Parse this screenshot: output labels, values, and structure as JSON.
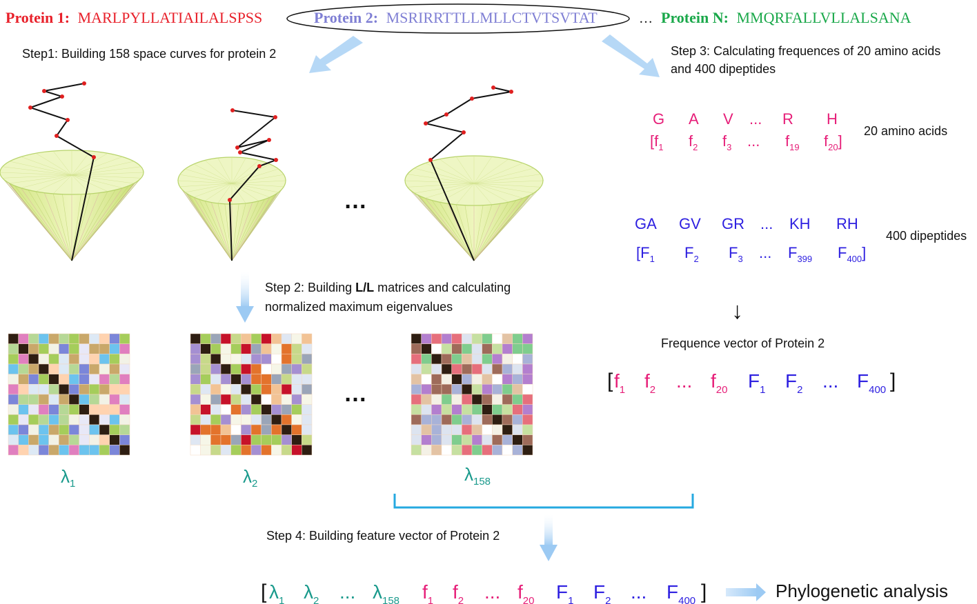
{
  "colors": {
    "protein1": "#e8202a",
    "protein2": "#7f7fd4",
    "proteinN": "#1aa84a",
    "aa": "#e61e78",
    "dipep": "#2d1fe0",
    "lambda": "#1a9a8c",
    "bracket": "#26a9e0",
    "arrow": "#a9d1f5",
    "cone_fill": "#e6f2a4",
    "cone_rim": "#b7d36a",
    "curve": "#111111",
    "point": "#e02020"
  },
  "proteins": [
    {
      "label": "Protein 1:",
      "seq": "MARLPYLLATIAILALSPSS"
    },
    {
      "label": "Protein 2:",
      "seq": "MSRIRRTTLLMLLCTVTSVTAT"
    },
    {
      "label": "Protein N:",
      "seq": "MMQRFALLVLLALSANA"
    }
  ],
  "ellipsis": "…",
  "steps": {
    "step1": "Step1: Building 158 space curves for protein 2",
    "step2_a": "Step 2: Building ",
    "step2_bold": "L/L",
    "step2_b": " matrices and calculating",
    "step2_c": "normalized maximum eigenvalues",
    "step3_a": "Step 3: Calculating frequences of 20 amino acids",
    "step3_b": "and 400 dipeptides",
    "step4": "Step 4: Building feature vector of Protein 2"
  },
  "amino": {
    "letters": [
      "G",
      "A",
      "V",
      "...",
      "R",
      "H"
    ],
    "freq": [
      {
        "b": "[f",
        "s": "1"
      },
      {
        "b": "f",
        "s": "2"
      },
      {
        "b": "f",
        "s": "3"
      },
      {
        "b": "...",
        "s": ""
      },
      {
        "b": "f",
        "s": "19"
      },
      {
        "b": "f",
        "s": "20",
        "close": "]"
      }
    ],
    "caption": "20 amino acids"
  },
  "dipeptide": {
    "letters": [
      "GA",
      "GV",
      "GR",
      "...",
      "KH",
      "RH"
    ],
    "freq": [
      {
        "b": "[F",
        "s": "1"
      },
      {
        "b": "F",
        "s": "2"
      },
      {
        "b": "F",
        "s": "3"
      },
      {
        "b": "...",
        "s": ""
      },
      {
        "b": "F",
        "s": "399"
      },
      {
        "b": "F",
        "s": "400",
        "close": "]"
      }
    ],
    "caption": "400 dipeptides"
  },
  "down_arrow": "↓",
  "freq_vector": {
    "title": "Frequence vector of Protein 2",
    "open": "[",
    "close": "]",
    "items": [
      {
        "b": "f",
        "s": "1",
        "kind": "aa"
      },
      {
        "b": "f",
        "s": "2",
        "kind": "aa"
      },
      {
        "b": "...",
        "s": "",
        "kind": "aa"
      },
      {
        "b": "f",
        "s": "20",
        "kind": "aa"
      },
      {
        "b": "F",
        "s": "1",
        "kind": "dipep"
      },
      {
        "b": "F",
        "s": "2",
        "kind": "dipep"
      },
      {
        "b": "...",
        "s": "",
        "kind": "dipep"
      },
      {
        "b": "F",
        "s": "400",
        "kind": "dipep"
      }
    ]
  },
  "lambdas": [
    {
      "b": "λ",
      "s": "1"
    },
    {
      "b": "λ",
      "s": "2"
    },
    {
      "b": "λ",
      "s": "158"
    }
  ],
  "mid_dots": "…",
  "feature_vector": {
    "open": "[",
    "close": "]",
    "items": [
      {
        "b": "λ",
        "s": "1",
        "kind": "lambda"
      },
      {
        "b": "λ",
        "s": "2",
        "kind": "lambda"
      },
      {
        "b": "...",
        "s": "",
        "kind": "lambda"
      },
      {
        "b": "λ",
        "s": "158",
        "kind": "lambda"
      },
      {
        "b": "f",
        "s": "1",
        "kind": "aa"
      },
      {
        "b": "f",
        "s": "2",
        "kind": "aa"
      },
      {
        "b": "...",
        "s": "",
        "kind": "aa"
      },
      {
        "b": "f",
        "s": "20",
        "kind": "aa"
      },
      {
        "b": "F",
        "s": "1",
        "kind": "dipep"
      },
      {
        "b": "F",
        "s": "2",
        "kind": "dipep"
      },
      {
        "b": "...",
        "s": "",
        "kind": "dipep"
      },
      {
        "b": "F",
        "s": "400",
        "kind": "dipep"
      }
    ]
  },
  "final": "Phylogenetic analysis"
}
